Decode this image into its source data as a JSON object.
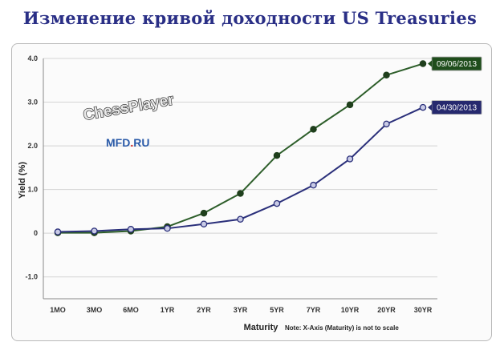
{
  "title": "Изменение кривой доходности US Treasuries",
  "watermark": {
    "main": "ChessPlayer",
    "sub_left": "MFD",
    "sub_dot": ".",
    "sub_right": "RU"
  },
  "chart_data": {
    "type": "line",
    "categories": [
      "1MO",
      "3MO",
      "6MO",
      "1YR",
      "2YR",
      "3YR",
      "5YR",
      "7YR",
      "10YR",
      "20YR",
      "30YR"
    ],
    "series": [
      {
        "name": "09/06/2013",
        "color": "#2d5e2a",
        "values": [
          0.01,
          0.01,
          0.05,
          0.15,
          0.46,
          0.91,
          1.78,
          2.38,
          2.94,
          3.62,
          3.88
        ]
      },
      {
        "name": "04/30/2013",
        "color": "#2a2f7a",
        "values": [
          0.03,
          0.05,
          0.09,
          0.11,
          0.21,
          0.32,
          0.68,
          1.1,
          1.7,
          2.5,
          2.88
        ]
      }
    ],
    "ylim": [
      -1.5,
      4.0
    ],
    "yticks": [
      "-1.0",
      "0",
      "1.0",
      "2.0",
      "3.0",
      "4.0"
    ],
    "ytick_values": [
      -1,
      0,
      1,
      2,
      3,
      4
    ],
    "xlabel": "Maturity",
    "ylabel": "Yield (%)",
    "note": "Note: X-Axis (Maturity) is not to scale",
    "grid": true,
    "legend": "right"
  }
}
